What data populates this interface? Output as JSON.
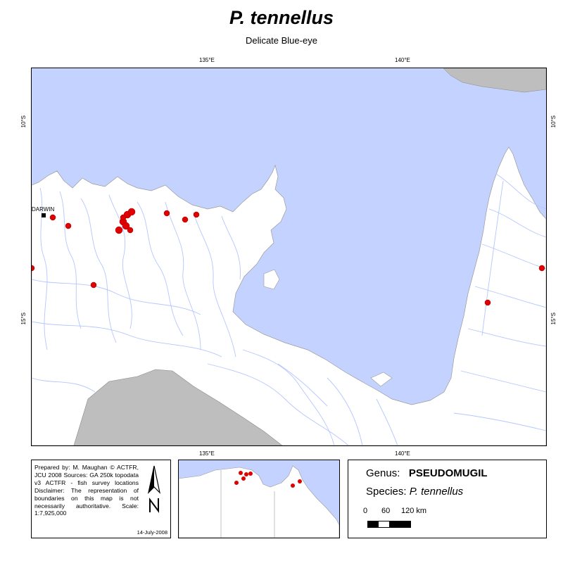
{
  "title": "P. tennellus",
  "subtitle": "Delicate Blue-eye",
  "ticks": {
    "top": [
      "135°E",
      "140°E"
    ],
    "bottom": [
      "135°E",
      "140°E"
    ],
    "left": [
      "10°S",
      "15°S"
    ],
    "right": [
      "10°S",
      "15°S"
    ]
  },
  "place_label": "DARWIN",
  "colors": {
    "sea": "#c4d2ff",
    "land": "#ffffff",
    "foreign_land": "#bebebe",
    "river": "#b4c6ff",
    "survey_point": "#e00000"
  },
  "info": {
    "text": "Prepared by: M. Maughan © ACTFR, JCU 2008 Sources: GA 250k topodata v3 ACTFR - fish survey locations Disclaimer: The representation of boundaries on this map is not necessarily authoritative. Scale: 1:7,925,000",
    "date": "14-July-2008",
    "north_arrow": "north-arrow-icon"
  },
  "legend": {
    "genus_label": "Genus:",
    "genus": "PSEUDOMUGIL",
    "species_label": "Species:",
    "species": "P. tennellus",
    "scale_labels": [
      "0",
      "60",
      "120 km"
    ]
  }
}
